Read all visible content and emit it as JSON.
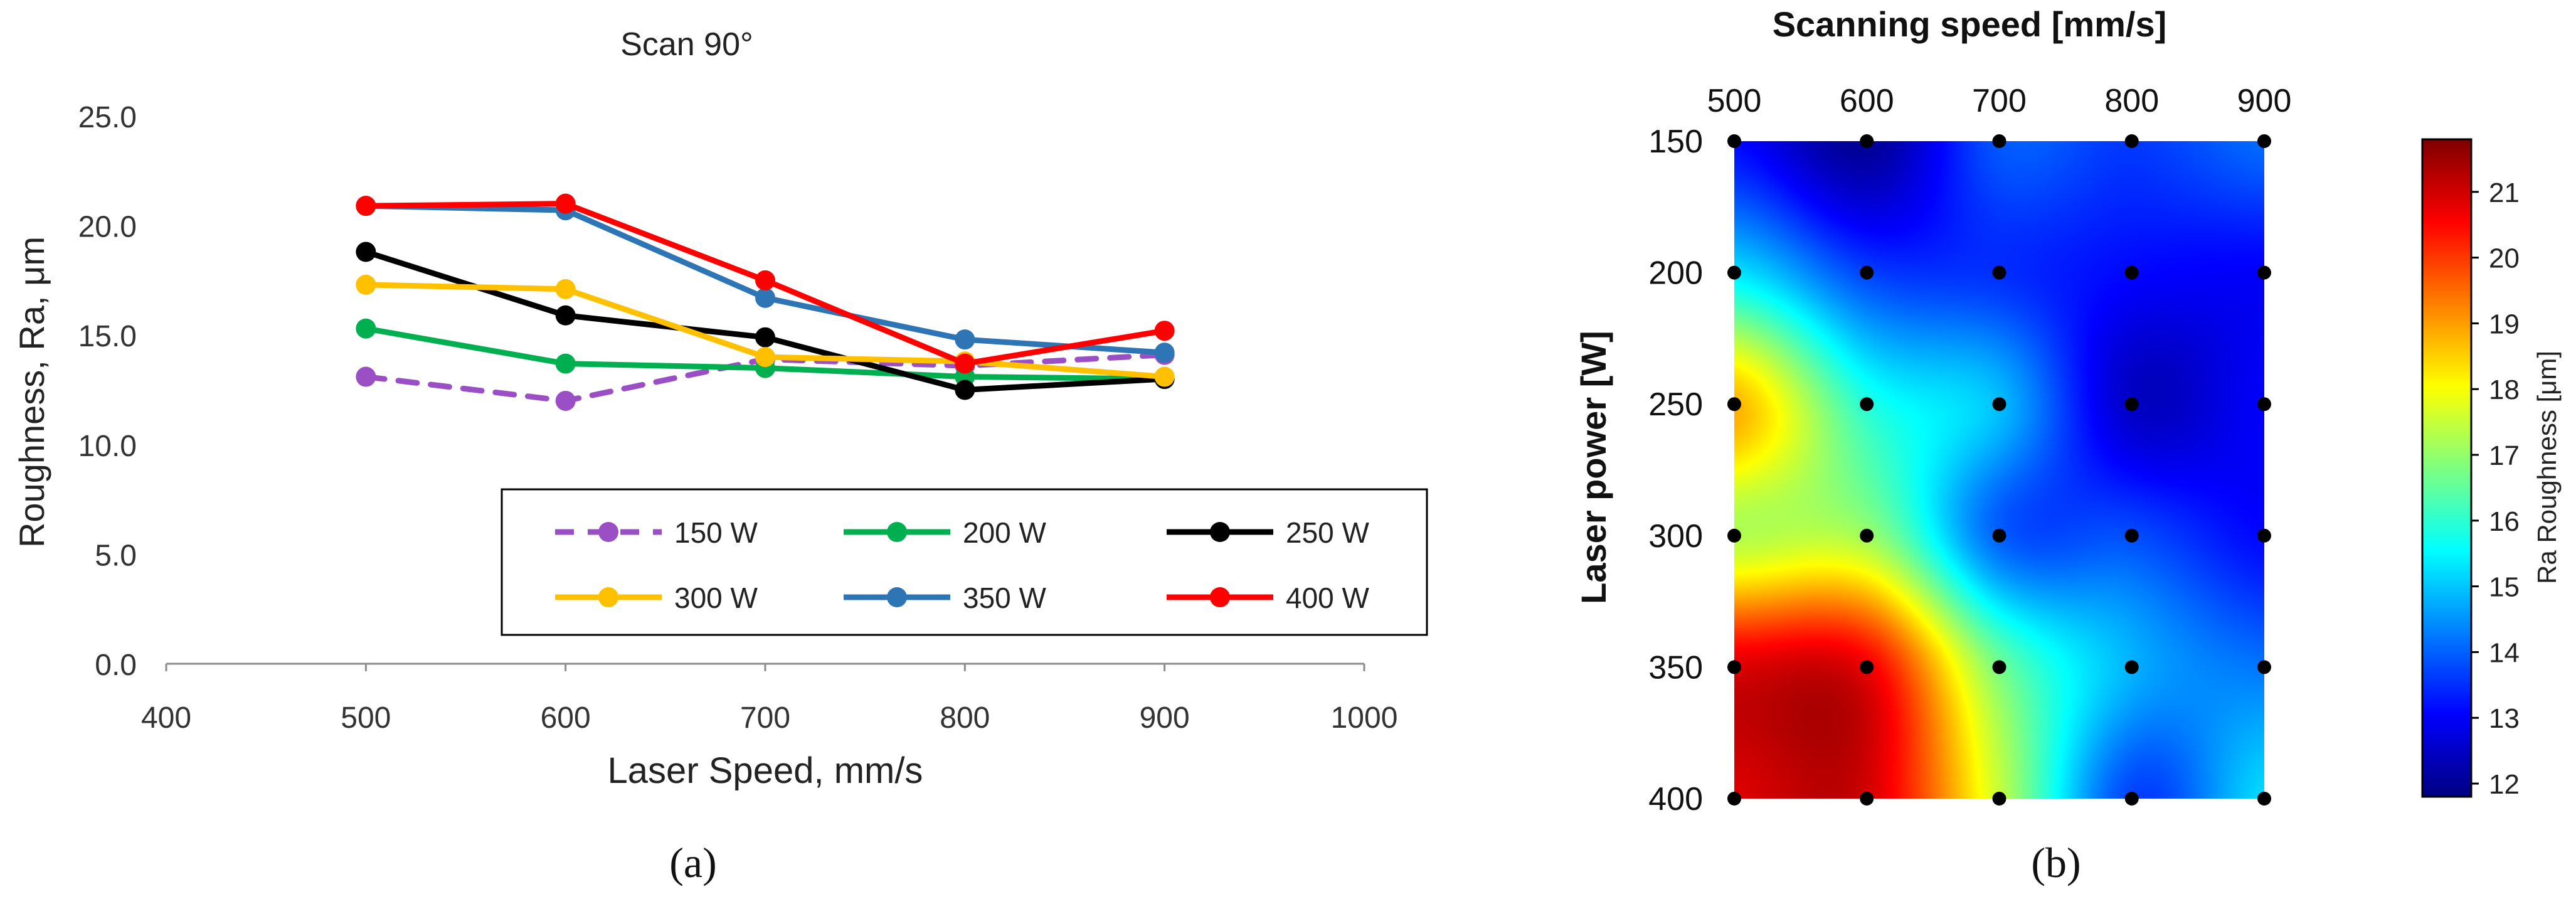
{
  "chart_data": [
    {
      "panel_label": "(a)",
      "type": "line",
      "title": "Scan 90°",
      "xlabel": "Laser Speed, mm/s",
      "ylabel": "Roughness, Ra, μm",
      "xlim": [
        400,
        1000
      ],
      "ylim": [
        0,
        25
      ],
      "xticks": [
        "400",
        "500",
        "600",
        "700",
        "800",
        "900",
        "1000"
      ],
      "yticks": [
        "0.0",
        "5.0",
        "10.0",
        "15.0",
        "20.0",
        "25.0"
      ],
      "grid": false,
      "legend_position": "bottom-right",
      "x": [
        500,
        600,
        700,
        800,
        900
      ],
      "series": [
        {
          "name": "150 W",
          "color": "#9b4fc4",
          "dashed": true,
          "values": [
            13.1,
            12.0,
            13.9,
            13.6,
            14.1
          ]
        },
        {
          "name": "200 W",
          "color": "#00b050",
          "dashed": false,
          "values": [
            15.3,
            13.7,
            13.5,
            13.1,
            13.0
          ]
        },
        {
          "name": "250 W",
          "color": "#000000",
          "dashed": false,
          "values": [
            18.8,
            15.9,
            14.9,
            12.5,
            13.0
          ]
        },
        {
          "name": "300 W",
          "color": "#ffc000",
          "dashed": false,
          "values": [
            17.3,
            17.1,
            14.0,
            13.8,
            13.1
          ]
        },
        {
          "name": "350 W",
          "color": "#2e75b6",
          "dashed": false,
          "values": [
            20.9,
            20.7,
            16.7,
            14.8,
            14.2
          ]
        },
        {
          "name": "400 W",
          "color": "#ff0000",
          "dashed": false,
          "values": [
            20.9,
            21.0,
            17.5,
            13.7,
            15.2
          ]
        }
      ]
    },
    {
      "panel_label": "(b)",
      "type": "heatmap",
      "xlabel": "Scanning speed [mm/s]",
      "ylabel": "Laser power [W]",
      "colorbar_label": "Ra Roughness [μm]",
      "x": [
        500,
        600,
        700,
        800,
        900
      ],
      "y": [
        150,
        200,
        250,
        300,
        350,
        400
      ],
      "xaxis_position": "top",
      "yaxis_direction": "top-to-bottom",
      "colorbar_range": [
        11.8,
        21.8
      ],
      "colorbar_ticks": [
        "12",
        "13",
        "14",
        "15",
        "16",
        "17",
        "18",
        "19",
        "20",
        "21"
      ],
      "colormap": "jet",
      "z": [
        [
          13.1,
          12.0,
          13.9,
          13.6,
          14.1
        ],
        [
          15.3,
          13.7,
          13.5,
          13.1,
          13.0
        ],
        [
          18.8,
          15.9,
          14.9,
          12.5,
          13.0
        ],
        [
          17.3,
          17.1,
          14.0,
          13.8,
          13.1
        ],
        [
          20.9,
          20.7,
          16.7,
          14.8,
          14.2
        ],
        [
          20.9,
          21.0,
          17.5,
          13.7,
          15.2
        ]
      ],
      "sample_points": "all grid intersections"
    }
  ]
}
